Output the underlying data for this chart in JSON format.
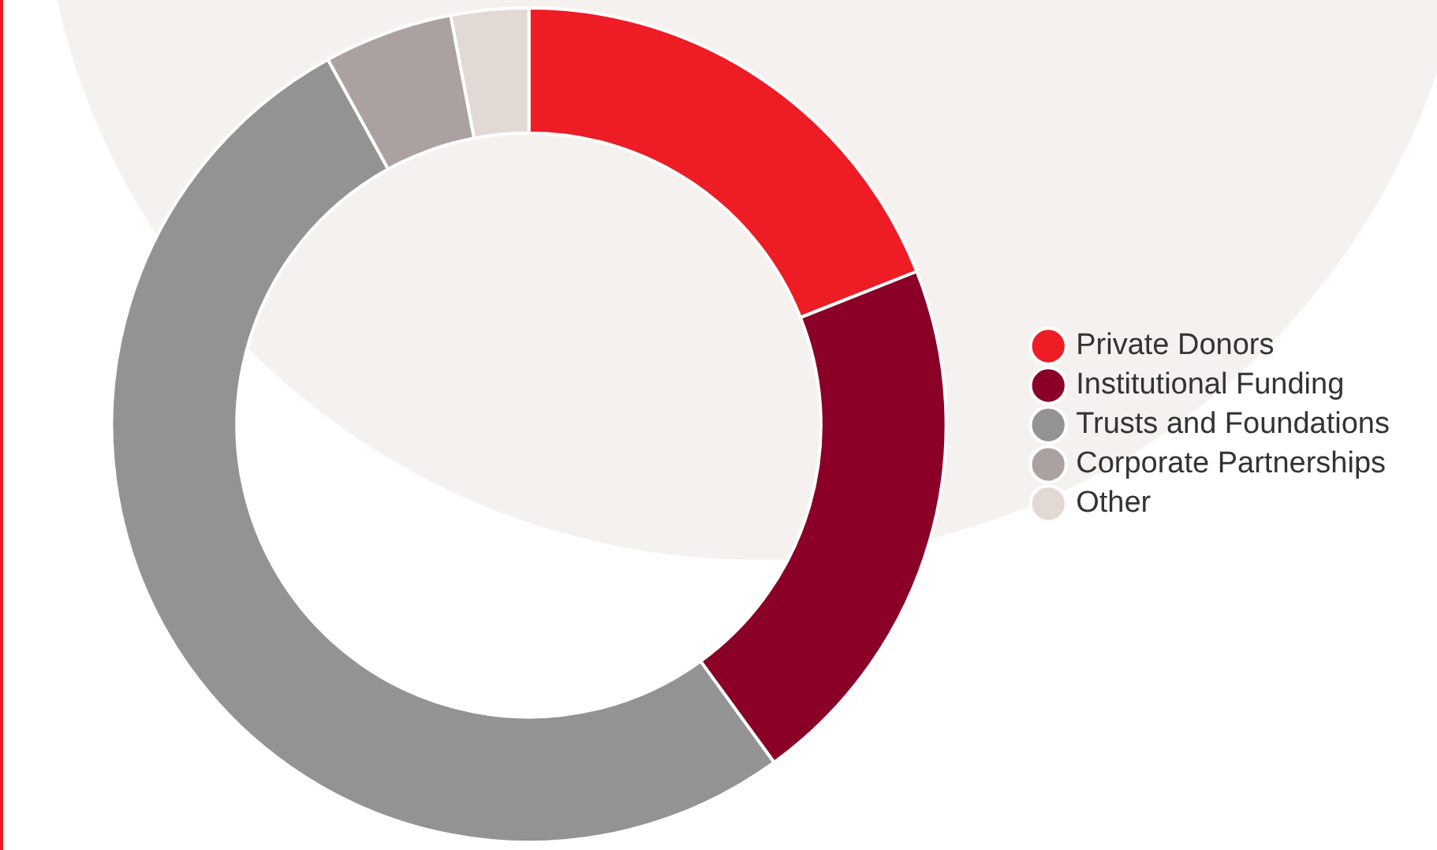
{
  "chart_data": {
    "type": "donut",
    "categories": [
      "Private Donors",
      "Institutional Funding",
      "Trusts and Foundations",
      "Corporate Partnerships",
      "Other"
    ],
    "values": [
      19,
      21,
      52,
      5,
      3
    ],
    "colors": [
      "#ee1c25",
      "#8b0027",
      "#939393",
      "#aba29f",
      "#e2d9d5"
    ],
    "legend": "right"
  }
}
